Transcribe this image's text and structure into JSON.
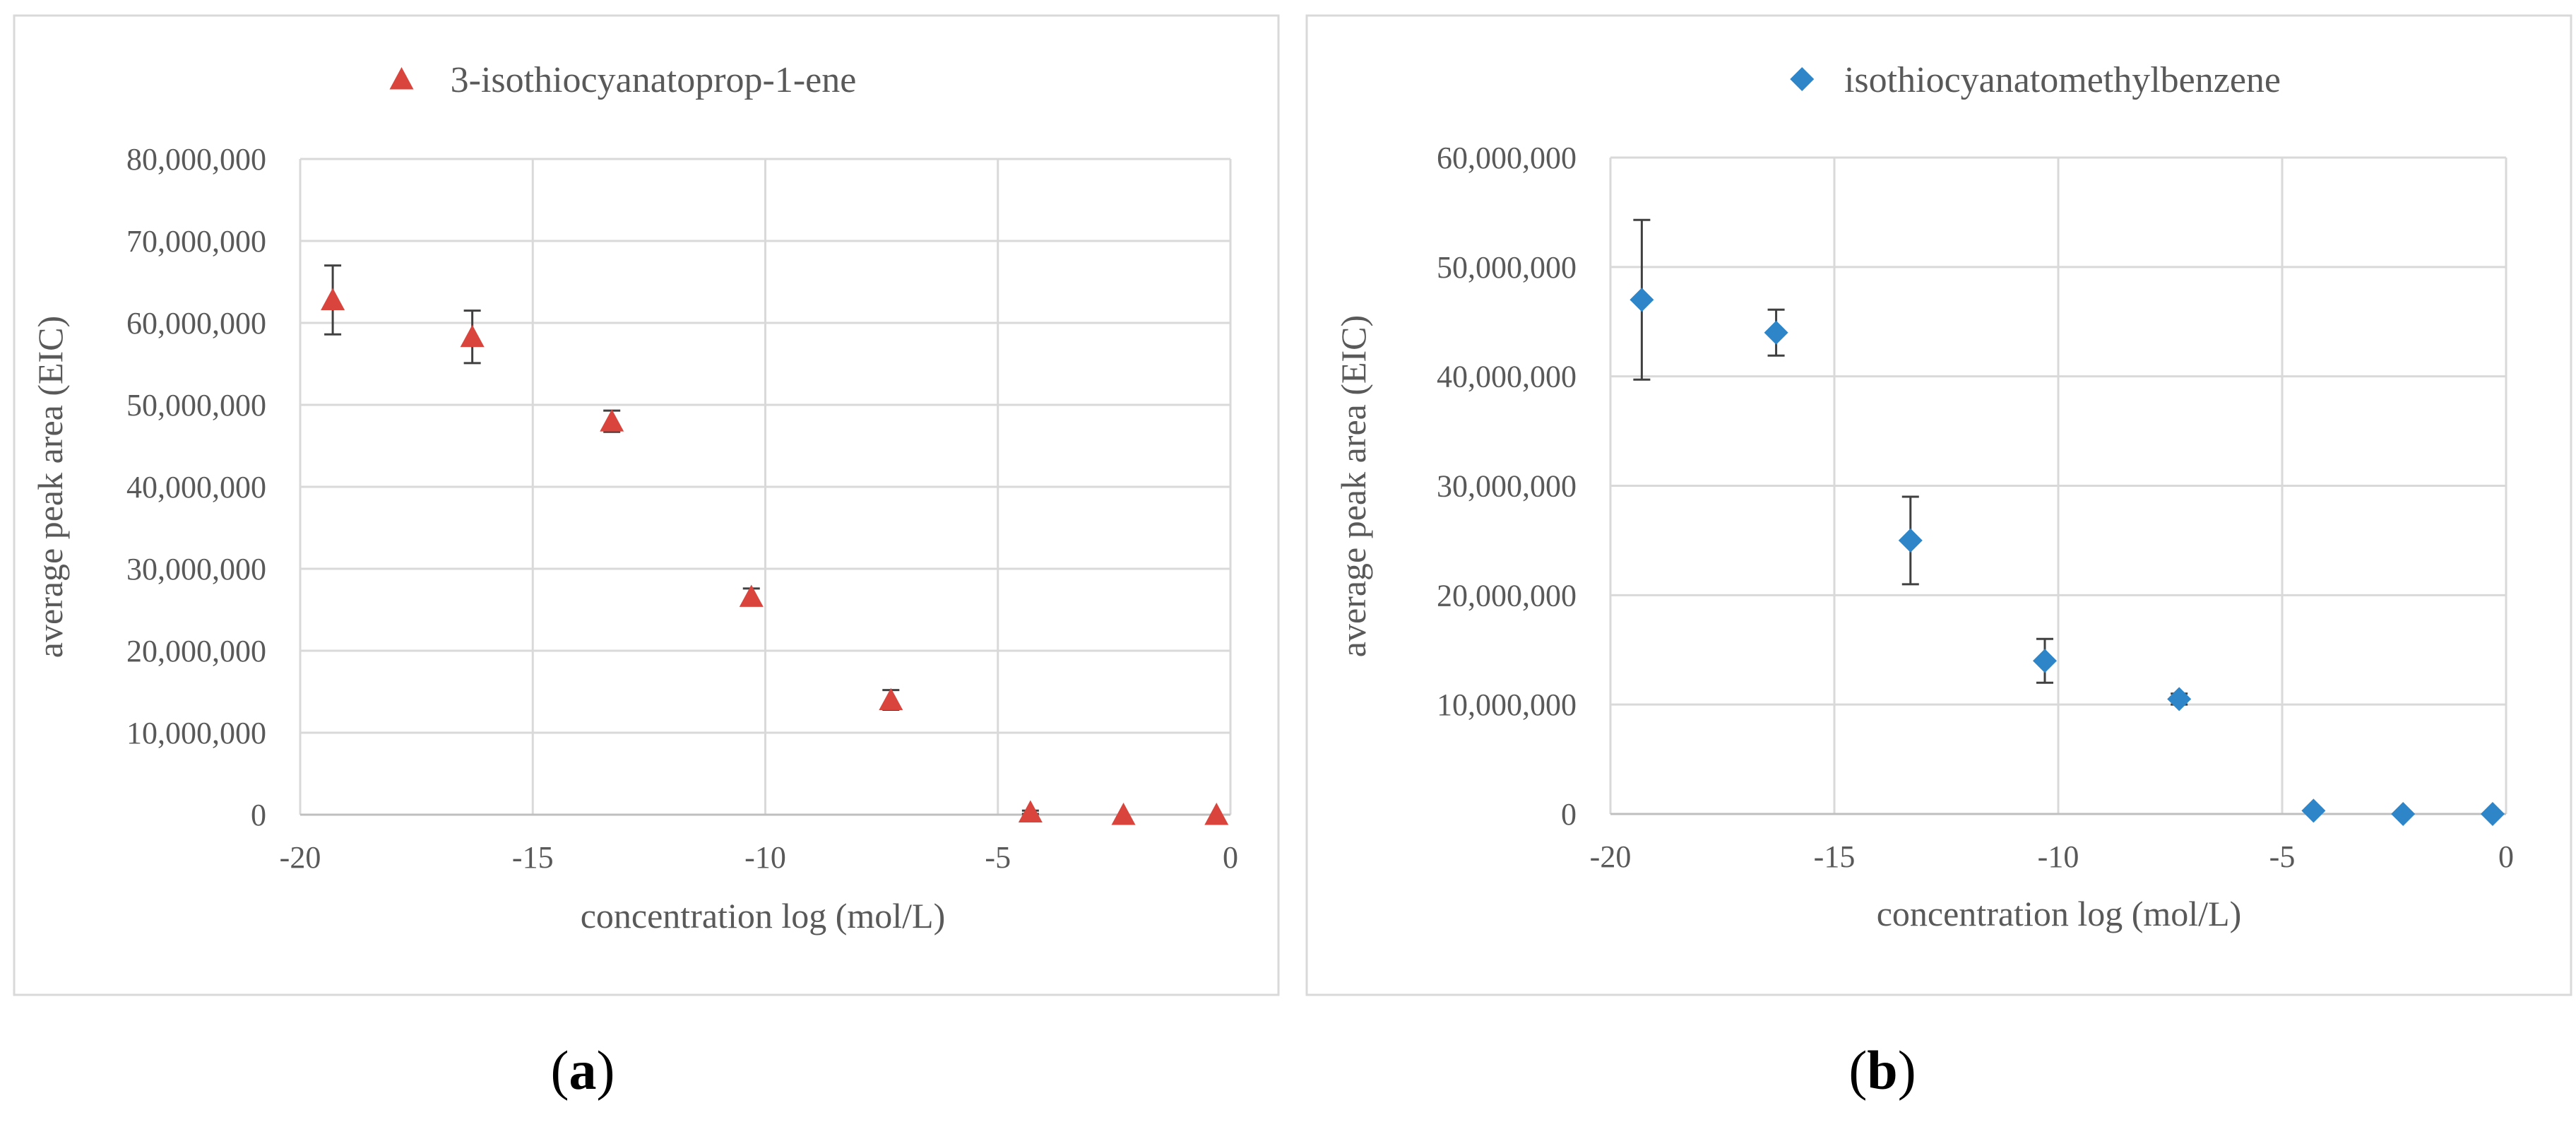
{
  "figure": {
    "panels": [
      {
        "label": "a"
      },
      {
        "label": "b"
      }
    ]
  },
  "chart_data": [
    {
      "type": "scatter",
      "title": "3-isothiocyanatoprop-1-ene",
      "legend": "top-center",
      "marker": "triangle",
      "color": "#D9453D",
      "xlabel": "concentration log (mol/L)",
      "ylabel": "average peak area (EIC)",
      "xlim": [
        -20,
        0
      ],
      "ylim": [
        0,
        80000000
      ],
      "xticks": [
        -20,
        -15,
        -10,
        -5,
        0
      ],
      "yticks": [
        0,
        10000000,
        20000000,
        30000000,
        40000000,
        50000000,
        60000000,
        70000000,
        80000000
      ],
      "xtick_labels": [
        "-20",
        "-15",
        "-10",
        "-5",
        "0"
      ],
      "ytick_labels": [
        "0",
        "10,000,000",
        "20,000,000",
        "30,000,000",
        "40,000,000",
        "50,000,000",
        "60,000,000",
        "70,000,000",
        "80,000,000"
      ],
      "grid": true,
      "x": [
        -19.3,
        -16.3,
        -13.3,
        -10.3,
        -7.3,
        -4.3,
        -2.3,
        -0.3
      ],
      "y": [
        62800000,
        58300000,
        48000000,
        26600000,
        14000000,
        300000,
        0,
        0
      ],
      "yerr": [
        4200000,
        3200000,
        1300000,
        1000000,
        1200000,
        200000,
        0,
        0
      ]
    },
    {
      "type": "scatter",
      "title": "isothiocyanatomethylbenzene",
      "legend": "top-center",
      "marker": "diamond",
      "color": "#2E86C8",
      "xlabel": "concentration log (mol/L)",
      "ylabel": "average peak area (EIC)",
      "xlim": [
        -20,
        0
      ],
      "ylim": [
        0,
        60000000
      ],
      "xticks": [
        -20,
        -15,
        -10,
        -5,
        0
      ],
      "yticks": [
        0,
        10000000,
        20000000,
        30000000,
        40000000,
        50000000,
        60000000
      ],
      "xtick_labels": [
        "-20",
        "-15",
        "-10",
        "-5",
        "0"
      ],
      "ytick_labels": [
        "0",
        "10,000,000",
        "20,000,000",
        "30,000,000",
        "40,000,000",
        "50,000,000",
        "60,000,000"
      ],
      "grid": true,
      "x": [
        -19.3,
        -16.3,
        -13.3,
        -10.3,
        -7.3,
        -4.3,
        -2.3,
        -0.3
      ],
      "y": [
        47000000,
        44000000,
        25000000,
        14000000,
        10500000,
        300000,
        0,
        0
      ],
      "yerr": [
        7300000,
        2100000,
        4000000,
        2000000,
        500000,
        100000,
        0,
        0
      ]
    }
  ]
}
